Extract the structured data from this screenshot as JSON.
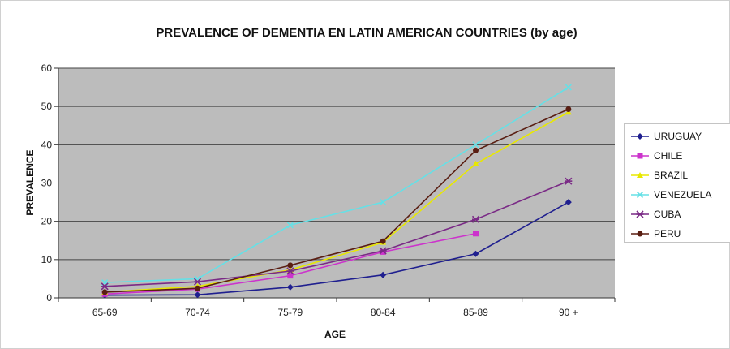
{
  "chart_data": {
    "type": "line",
    "title": "PREVALENCE OF DEMENTIA EN LATIN AMERICAN COUNTRIES (by age)",
    "xlabel": "AGE",
    "ylabel": "PREVALENCE",
    "ylim": [
      0,
      60
    ],
    "yticks": [
      "0",
      "10",
      "20",
      "30",
      "40",
      "50",
      "60"
    ],
    "categories": [
      "65-69",
      "70-74",
      "75-79",
      "80-84",
      "85-89",
      "90 +"
    ],
    "grid": true,
    "legend_position": "right",
    "series": [
      {
        "name": "URUGUAY",
        "color": "#1f1f8f",
        "marker": "diamond",
        "values": [
          0.7,
          0.8,
          2.8,
          6,
          11.5,
          25
        ]
      },
      {
        "name": "CHILE",
        "color": "#cc33cc",
        "marker": "square",
        "values": [
          1,
          2.3,
          5.8,
          12,
          16.8,
          null
        ]
      },
      {
        "name": "BRAZIL",
        "color": "#e8e800",
        "marker": "triangle",
        "values": [
          1.5,
          3,
          7.3,
          14.5,
          35,
          48.5
        ]
      },
      {
        "name": "VENEZUELA",
        "color": "#66e0e6",
        "marker": "x",
        "values": [
          4,
          5,
          19,
          25,
          40,
          55
        ]
      },
      {
        "name": "CUBA",
        "color": "#7a2a86",
        "marker": "star",
        "values": [
          3,
          4.2,
          7,
          12.3,
          20.5,
          30.5
        ]
      },
      {
        "name": "PERU",
        "color": "#5a1e12",
        "marker": "circle",
        "values": [
          1.5,
          2.5,
          8.5,
          14.8,
          38.5,
          49.3
        ]
      }
    ]
  }
}
